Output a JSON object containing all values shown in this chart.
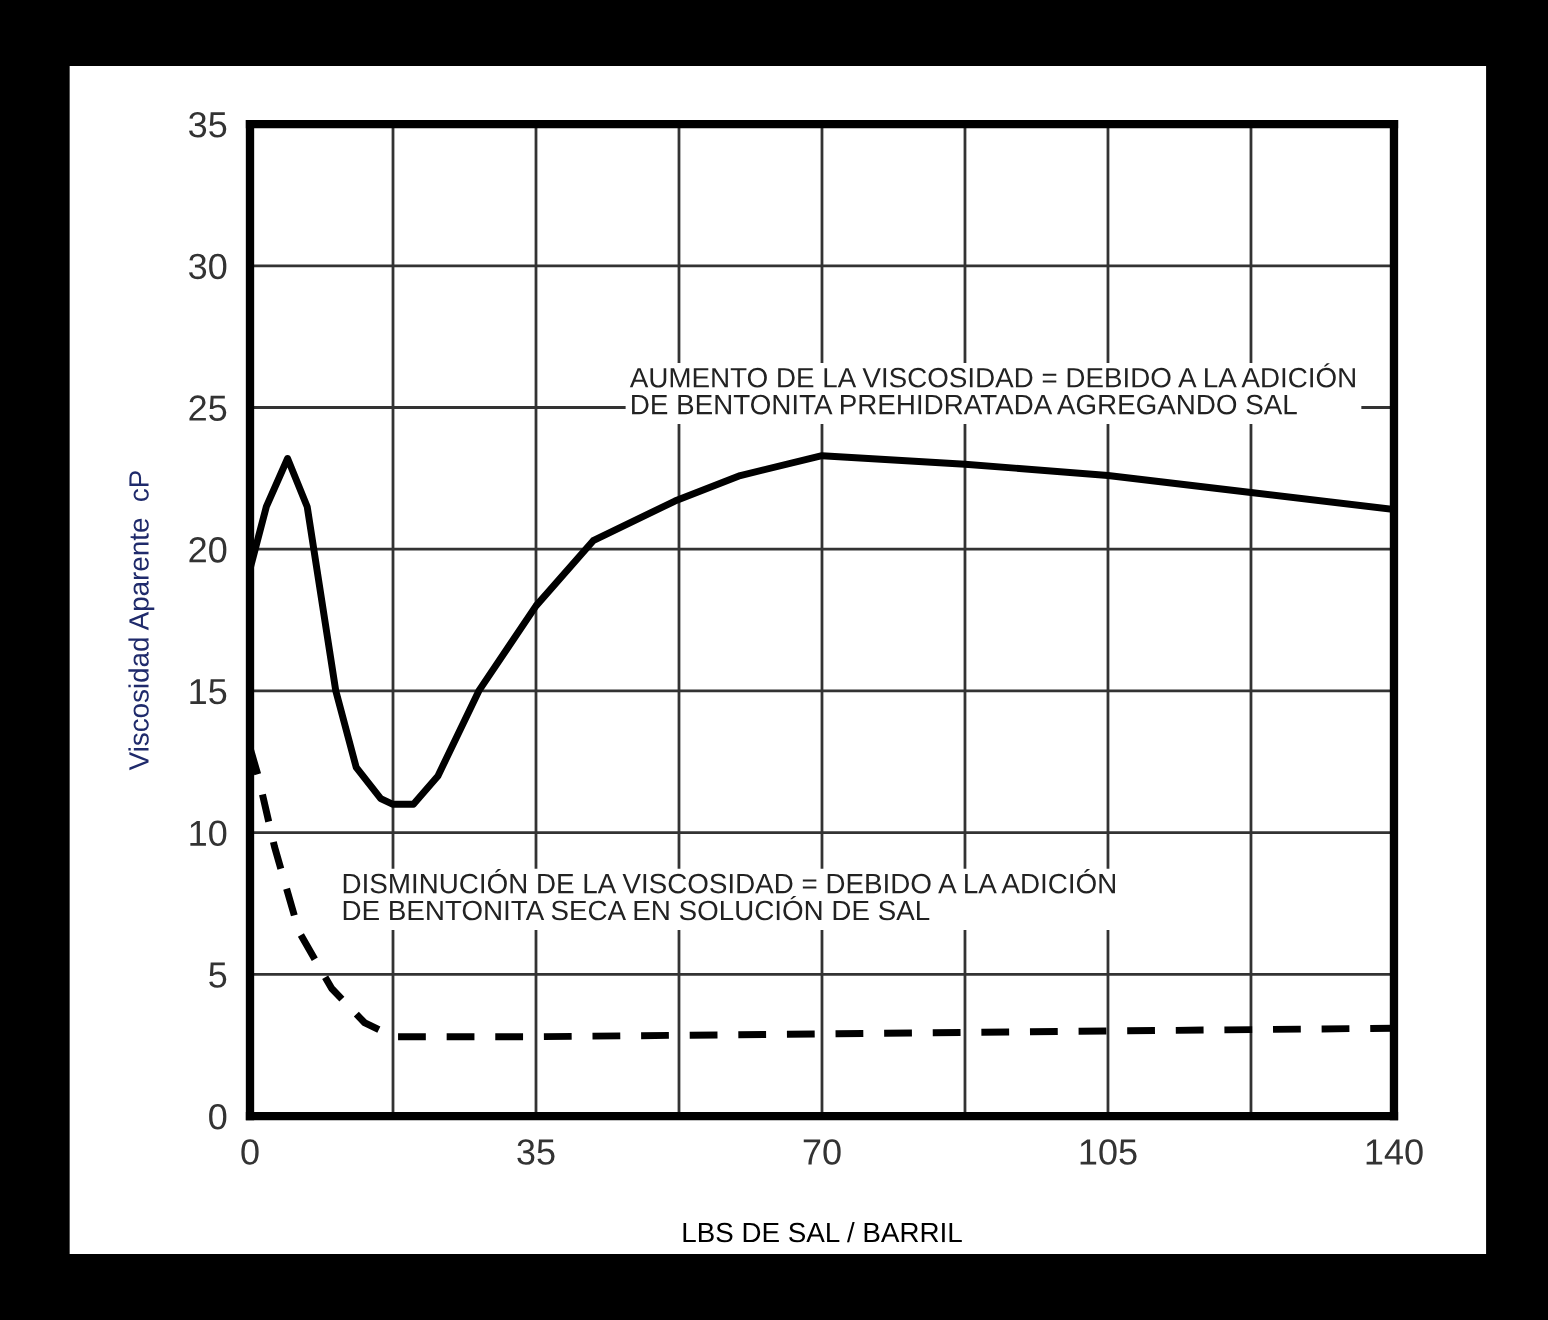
{
  "chart_data": {
    "type": "line",
    "xlabel": "LBS DE SAL / BARRIL",
    "ylabel": "Viscosidad Aparente  cP",
    "xlim": [
      0,
      140
    ],
    "ylim": [
      0,
      35
    ],
    "xticks": [
      0,
      {
        "value": 17.5,
        "label": null
      },
      35,
      {
        "value": 52.5,
        "label": null
      },
      70,
      {
        "value": 87.5,
        "label": null
      },
      105,
      {
        "value": 122.5,
        "label": null
      },
      140
    ],
    "yticks": [
      0,
      5,
      10,
      15,
      20,
      25,
      30,
      35
    ],
    "grid": true,
    "series": [
      {
        "color": "#000000",
        "line_style": "solid",
        "x": [
          0,
          2,
          4.6,
          7,
          10.5,
          13,
          16,
          17.5,
          20,
          23,
          28,
          35,
          42,
          52,
          60,
          70,
          87.5,
          105,
          122.5,
          140
        ],
        "values": [
          19.3,
          21.5,
          23.2,
          21.5,
          15,
          12.3,
          11.2,
          11.0,
          11.0,
          12,
          15,
          18.0,
          20.3,
          21.7,
          22.6,
          23.3,
          23.0,
          22.6,
          22.0,
          21.4
        ]
      },
      {
        "color": "#000000",
        "line_style": "dashed",
        "x": [
          0,
          1,
          3,
          6,
          10,
          14,
          17.5,
          35,
          70,
          105,
          140
        ],
        "values": [
          13,
          12,
          9.5,
          6.5,
          4.5,
          3.3,
          2.8,
          2.8,
          2.9,
          3.0,
          3.1
        ]
      }
    ],
    "annotations": [
      "AUMENTO DE LA VISCOSIDAD = DEBIDO A LA ADICIÓN\nDE BENTONITA PREHIDRATADA AGREGANDO SAL",
      "DISMINUCIÓN DE LA VISCOSIDAD = DEBIDO A LA ADICIÓN\nDE BENTONITA SECA EN SOLUCIÓN DE SAL"
    ]
  }
}
